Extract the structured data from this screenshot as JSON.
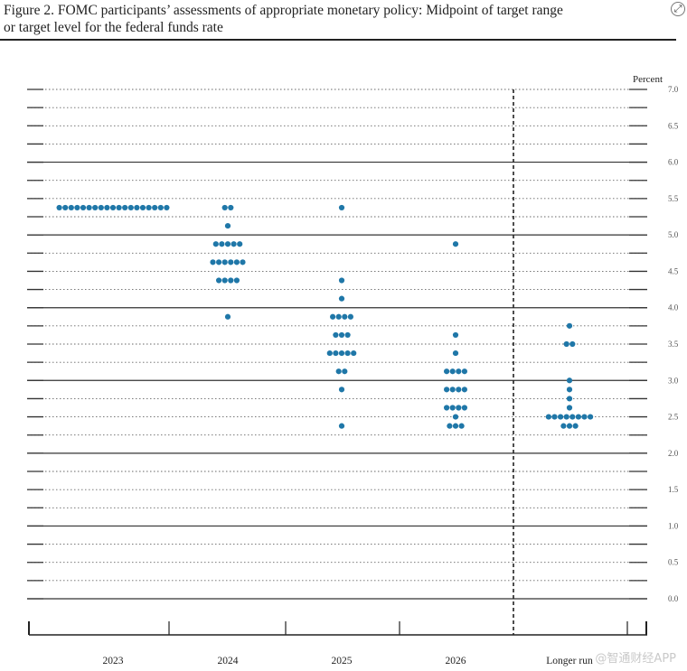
{
  "title": {
    "line1": "Figure 2.  FOMC participants’ assessments of appropriate monetary policy:  Midpoint of target range",
    "line2": "or target level for the federal funds rate"
  },
  "watermark": "@智通财经APP",
  "chart_data": {
    "type": "scatter",
    "subtype": "dot plot",
    "title": "",
    "xlabel": "",
    "ylabel": "Percent",
    "ylim": [
      0,
      7.0
    ],
    "y_ticks": [
      0.0,
      0.5,
      1.0,
      1.5,
      2.0,
      2.5,
      3.0,
      3.5,
      4.0,
      4.5,
      5.0,
      5.5,
      6.0,
      6.5,
      7.0
    ],
    "y_tick_labels": [
      "0.0",
      "0.5",
      "1.0",
      "1.5",
      "2.0",
      "2.5",
      "3.0",
      "3.5",
      "4.0",
      "4.5",
      "5.0",
      "5.5",
      "6.0",
      "6.5",
      "7.0"
    ],
    "categories": [
      "2023",
      "2024",
      "2025",
      "2026",
      "Longer run"
    ],
    "separator_before": "Longer run",
    "dot_color": "#1f77a8",
    "dots": [
      {
        "category": "2023",
        "y": 5.375,
        "count": 19
      },
      {
        "category": "2024",
        "y": 5.375,
        "count": 2
      },
      {
        "category": "2024",
        "y": 5.125,
        "count": 1
      },
      {
        "category": "2024",
        "y": 4.875,
        "count": 5
      },
      {
        "category": "2024",
        "y": 4.625,
        "count": 6
      },
      {
        "category": "2024",
        "y": 4.375,
        "count": 4
      },
      {
        "category": "2024",
        "y": 3.875,
        "count": 1
      },
      {
        "category": "2025",
        "y": 5.375,
        "count": 1
      },
      {
        "category": "2025",
        "y": 4.375,
        "count": 1
      },
      {
        "category": "2025",
        "y": 4.125,
        "count": 1
      },
      {
        "category": "2025",
        "y": 3.875,
        "count": 4
      },
      {
        "category": "2025",
        "y": 3.625,
        "count": 3
      },
      {
        "category": "2025",
        "y": 3.375,
        "count": 5
      },
      {
        "category": "2025",
        "y": 3.125,
        "count": 2
      },
      {
        "category": "2025",
        "y": 2.875,
        "count": 1
      },
      {
        "category": "2025",
        "y": 2.375,
        "count": 1
      },
      {
        "category": "2026",
        "y": 4.875,
        "count": 1
      },
      {
        "category": "2026",
        "y": 3.625,
        "count": 1
      },
      {
        "category": "2026",
        "y": 3.375,
        "count": 1
      },
      {
        "category": "2026",
        "y": 3.125,
        "count": 4
      },
      {
        "category": "2026",
        "y": 2.875,
        "count": 4
      },
      {
        "category": "2026",
        "y": 2.625,
        "count": 4
      },
      {
        "category": "2026",
        "y": 2.5,
        "count": 1
      },
      {
        "category": "2026",
        "y": 2.375,
        "count": 3
      },
      {
        "category": "Longer run",
        "y": 3.75,
        "count": 1
      },
      {
        "category": "Longer run",
        "y": 3.5,
        "count": 2
      },
      {
        "category": "Longer run",
        "y": 3.0,
        "count": 1
      },
      {
        "category": "Longer run",
        "y": 2.875,
        "count": 1
      },
      {
        "category": "Longer run",
        "y": 2.75,
        "count": 1
      },
      {
        "category": "Longer run",
        "y": 2.625,
        "count": 1
      },
      {
        "category": "Longer run",
        "y": 2.5,
        "count": 8
      },
      {
        "category": "Longer run",
        "y": 2.375,
        "count": 3
      }
    ]
  }
}
